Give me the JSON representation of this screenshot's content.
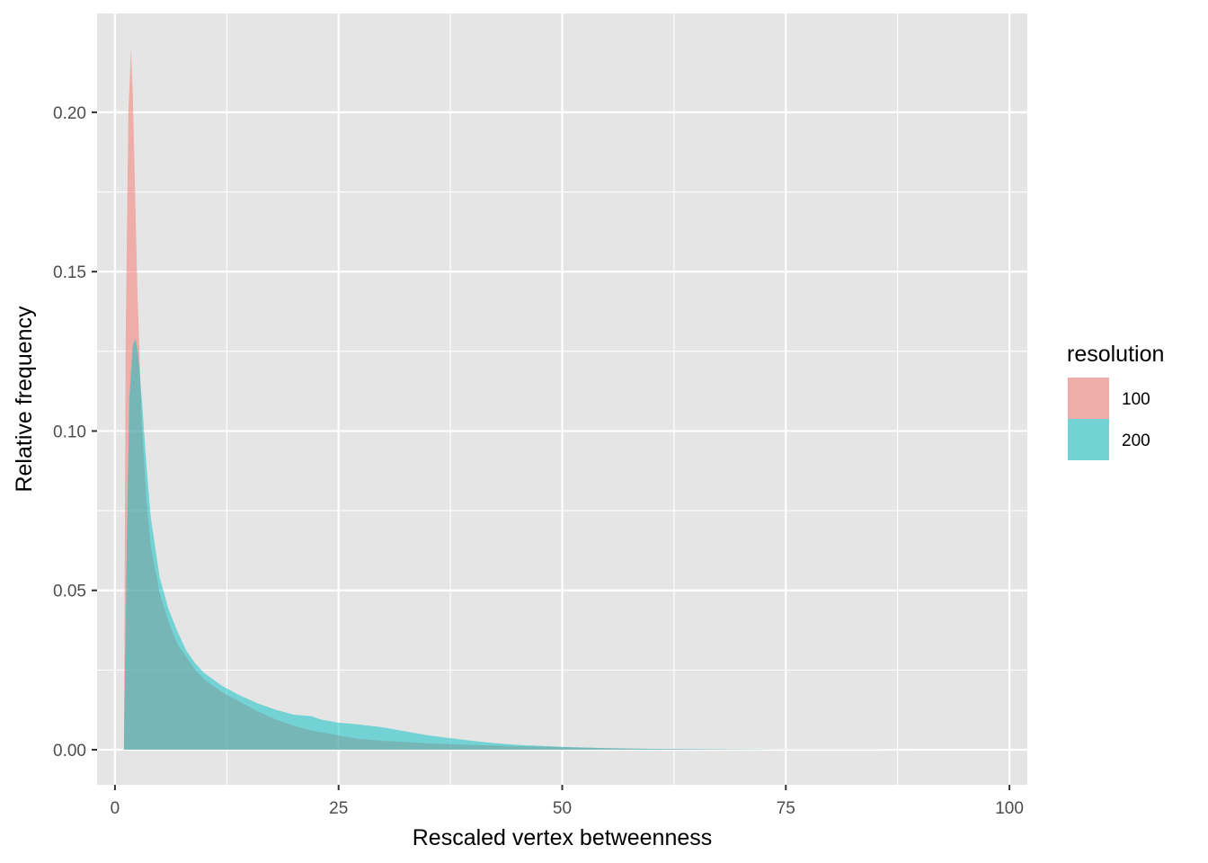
{
  "chart_data": {
    "type": "area",
    "subtype": "density",
    "title": "",
    "xlabel": "Rescaled vertex betweenness",
    "ylabel": "Relative frequency",
    "xlim": [
      -2,
      102
    ],
    "ylim": [
      -0.011,
      0.231
    ],
    "xticks": [
      0,
      25,
      50,
      75,
      100
    ],
    "xtick_labels": [
      "0",
      "25",
      "50",
      "75",
      "100"
    ],
    "yticks": [
      0.0,
      0.05,
      0.1,
      0.15,
      0.2
    ],
    "ytick_labels": [
      "0.00",
      "0.05",
      "0.10",
      "0.15",
      "0.20"
    ],
    "grid": true,
    "legend": {
      "title": "resolution",
      "position": "right"
    },
    "colors": {
      "panel_background": "#e5e5e5",
      "grid": "#ffffff",
      "series_100": "#f8766d",
      "series_200": "#00bfc4"
    },
    "fill_opacity": 0.5,
    "series": [
      {
        "name": "100",
        "x": [
          1,
          1.2,
          1.5,
          1.8,
          2,
          2.5,
          3,
          3.5,
          4,
          5,
          6,
          7,
          8,
          9,
          10,
          12,
          14,
          16,
          18,
          20,
          22,
          25,
          27,
          30,
          35,
          40,
          45,
          50,
          55,
          60,
          65,
          70,
          75,
          80,
          85,
          90,
          95,
          100
        ],
        "y": [
          0.0,
          0.13,
          0.2,
          0.22,
          0.205,
          0.145,
          0.102,
          0.079,
          0.064,
          0.049,
          0.04,
          0.033,
          0.029,
          0.025,
          0.022,
          0.018,
          0.015,
          0.012,
          0.0095,
          0.0075,
          0.006,
          0.0045,
          0.0035,
          0.0028,
          0.002,
          0.0015,
          0.0011,
          0.0008,
          0.0005,
          0.0003,
          0.0002,
          0.0001,
          5e-05,
          3e-05,
          2e-05,
          1e-05,
          1e-05,
          0.0
        ]
      },
      {
        "name": "200",
        "x": [
          1,
          1.3,
          1.6,
          2,
          2.3,
          2.6,
          3,
          3.5,
          4,
          5,
          6,
          7,
          8,
          9,
          10,
          12,
          14,
          16,
          18,
          20,
          22,
          23,
          25,
          27,
          30,
          33,
          35,
          37,
          40,
          42,
          45,
          50,
          55,
          60,
          65,
          70,
          75,
          80,
          85,
          90,
          95,
          100
        ],
        "y": [
          0.0,
          0.06,
          0.11,
          0.127,
          0.129,
          0.124,
          0.11,
          0.09,
          0.073,
          0.054,
          0.044,
          0.037,
          0.031,
          0.027,
          0.024,
          0.02,
          0.017,
          0.0145,
          0.0125,
          0.011,
          0.0105,
          0.0095,
          0.0085,
          0.008,
          0.007,
          0.0055,
          0.0045,
          0.0038,
          0.0028,
          0.0022,
          0.0015,
          0.0009,
          0.0005,
          0.0003,
          0.0002,
          0.0001,
          5e-05,
          3e-05,
          2e-05,
          1e-05,
          1e-05,
          0.0
        ]
      }
    ]
  }
}
